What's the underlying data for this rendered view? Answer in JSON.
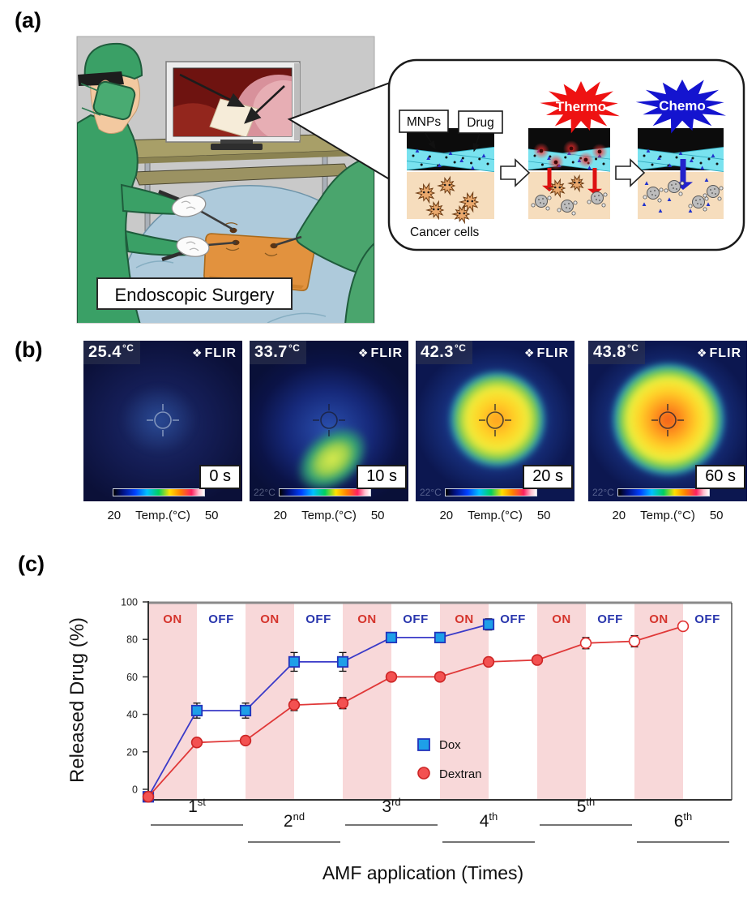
{
  "panels": {
    "a": {
      "label": "(a)",
      "caption": "Endoscopic Surgery",
      "callout": {
        "mnps": "MNPs",
        "drug": "Drug",
        "thermo": "Thermo",
        "chemo": "Chemo",
        "cancer_cells": "Cancer cells"
      }
    },
    "b": {
      "label": "(b)",
      "frames": [
        {
          "temp": "25.4",
          "unit": "°C",
          "brand": "FLIR",
          "brand_icon": "❖",
          "time": "0 s",
          "overlay_temp": "",
          "scale_min": "20",
          "scale_label": "Temp.(°C)",
          "scale_max": "50"
        },
        {
          "temp": "33.7",
          "unit": "°C",
          "brand": "FLIR",
          "brand_icon": "❖",
          "time": "10 s",
          "overlay_temp": "22°C",
          "scale_min": "20",
          "scale_label": "Temp.(°C)",
          "scale_max": "50"
        },
        {
          "temp": "42.3",
          "unit": "°C",
          "brand": "FLIR",
          "brand_icon": "❖",
          "time": "20 s",
          "overlay_temp": "22°C",
          "scale_min": "20",
          "scale_label": "Temp.(°C)",
          "scale_max": "50"
        },
        {
          "temp": "43.8",
          "unit": "°C",
          "brand": "FLIR",
          "brand_icon": "❖",
          "time": "60 s",
          "overlay_temp": "22°C",
          "scale_min": "20",
          "scale_label": "Temp.(°C)",
          "scale_max": "50"
        }
      ]
    },
    "c": {
      "label": "(c)"
    }
  },
  "chart_data": {
    "type": "line",
    "title": "",
    "xlabel": "AMF application (Times)",
    "ylabel": "Released Drug (%)",
    "ylim": [
      -5,
      100
    ],
    "yticks": [
      0,
      20,
      40,
      60,
      80,
      100
    ],
    "grid": false,
    "legend_position": "center-bottom",
    "bands": [
      "ON",
      "OFF",
      "ON",
      "OFF",
      "ON",
      "OFF",
      "ON",
      "OFF",
      "ON",
      "OFF",
      "ON",
      "OFF"
    ],
    "band_colors": {
      "on_fill": "#f8d8d9",
      "off_fill": "#ffffff",
      "on_text": "#d5342c",
      "off_text": "#2936ad"
    },
    "x_groups": [
      {
        "num": "1",
        "sup": "st"
      },
      {
        "num": "2",
        "sup": "nd"
      },
      {
        "num": "3",
        "sup": "rd"
      },
      {
        "num": "4",
        "sup": "th"
      },
      {
        "num": "5",
        "sup": "th"
      },
      {
        "num": "6",
        "sup": "th"
      }
    ],
    "series": [
      {
        "name": "Dox",
        "marker": "square",
        "fill": "#1e9fe8",
        "stroke": "#2233bb",
        "line": "#3a3ac8",
        "values": [
          -4,
          42,
          42,
          68,
          68,
          81,
          81,
          88
        ],
        "errors": [
          0,
          4,
          4,
          5,
          5,
          2,
          2,
          3
        ]
      },
      {
        "name": "Dextran",
        "marker": "circle",
        "fill": "#f35151",
        "stroke": "#cc2525",
        "line": "#e03838",
        "values": [
          -4,
          25,
          26,
          45,
          46,
          60,
          60,
          68,
          69,
          78,
          79,
          87
        ],
        "errors": [
          0,
          1,
          1,
          3,
          3,
          2,
          2,
          2,
          2,
          3,
          3,
          0
        ],
        "open_from_index": 9
      }
    ]
  }
}
